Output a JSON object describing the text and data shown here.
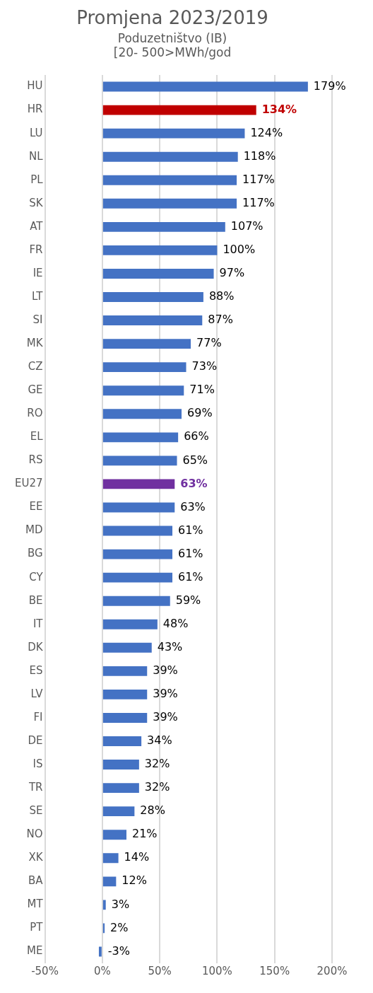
{
  "chart_data": {
    "type": "bar",
    "orientation": "horizontal",
    "title": "Promjena 2023/2019",
    "subtitle": "Poduzetništvo (IB)\n[20- 500>MWh/god",
    "categories": [
      "HU",
      "HR",
      "LU",
      "NL",
      "PL",
      "SK",
      "AT",
      "FR",
      "IE",
      "LT",
      "SI",
      "MK",
      "CZ",
      "GE",
      "RO",
      "EL",
      "RS",
      "EU27",
      "EE",
      "MD",
      "BG",
      "CY",
      "BE",
      "IT",
      "DK",
      "ES",
      "LV",
      "FI",
      "DE",
      "IS",
      "TR",
      "SE",
      "NO",
      "XK",
      "BA",
      "MT",
      "PT",
      "ME"
    ],
    "values": [
      179,
      134,
      124,
      118,
      117,
      117,
      107,
      100,
      97,
      88,
      87,
      77,
      73,
      71,
      69,
      66,
      65,
      63,
      63,
      61,
      61,
      61,
      59,
      48,
      43,
      39,
      39,
      39,
      34,
      32,
      32,
      28,
      21,
      14,
      12,
      3,
      2,
      -3
    ],
    "value_labels": [
      "179%",
      "134%",
      "124%",
      "118%",
      "117%",
      "117%",
      "107%",
      "100%",
      "97%",
      "88%",
      "87%",
      "77%",
      "73%",
      "71%",
      "69%",
      "66%",
      "65%",
      "63%",
      "63%",
      "61%",
      "61%",
      "61%",
      "59%",
      "48%",
      "43%",
      "39%",
      "39%",
      "39%",
      "34%",
      "32%",
      "32%",
      "28%",
      "21%",
      "14%",
      "12%",
      "3%",
      "2%",
      "-3%"
    ],
    "color": "#4472c4",
    "colors": [
      "#4472c4",
      "#c00000",
      "#4472c4",
      "#4472c4",
      "#4472c4",
      "#4472c4",
      "#4472c4",
      "#4472c4",
      "#4472c4",
      "#4472c4",
      "#4472c4",
      "#4472c4",
      "#4472c4",
      "#4472c4",
      "#4472c4",
      "#4472c4",
      "#4472c4",
      "#7030a0",
      "#4472c4",
      "#4472c4",
      "#4472c4",
      "#4472c4",
      "#4472c4",
      "#4472c4",
      "#4472c4",
      "#4472c4",
      "#4472c4",
      "#4472c4",
      "#4472c4",
      "#4472c4",
      "#4472c4",
      "#4472c4",
      "#4472c4",
      "#4472c4",
      "#4472c4",
      "#4472c4",
      "#4472c4",
      "#4472c4"
    ],
    "xlim": [
      -50,
      200
    ],
    "xticks": [
      {
        "value": -50,
        "label": "-50%"
      },
      {
        "value": 0,
        "label": "0%"
      },
      {
        "value": 50,
        "label": "50%"
      },
      {
        "value": 100,
        "label": "100%"
      },
      {
        "value": 150,
        "label": "150%"
      },
      {
        "value": 200,
        "label": "200%"
      }
    ],
    "grid": "x",
    "legend": false
  }
}
